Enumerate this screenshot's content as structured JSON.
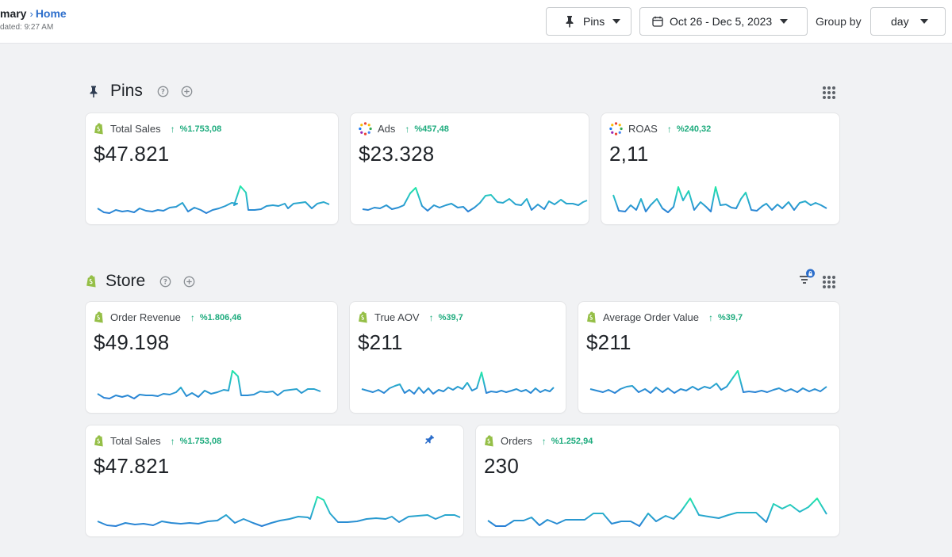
{
  "header": {
    "breadcrumb_parent": "mary",
    "breadcrumb_sep": "›",
    "breadcrumb_current": "Home",
    "updated": "dated: 9:27 AM",
    "pins_button": "Pins",
    "date_range": "Oct 26 - Dec 5, 2023",
    "group_by_label": "Group by",
    "group_by_value": "day"
  },
  "sections": {
    "pins": {
      "title": "Pins"
    },
    "store": {
      "title": "Store"
    }
  },
  "cards": {
    "pins_total_sales": {
      "label": "Total Sales",
      "delta": "%1.753,08",
      "value": "$47.821"
    },
    "pins_ads": {
      "label": "Ads",
      "delta": "%457,48",
      "value": "$23.328"
    },
    "pins_roas": {
      "label": "ROAS",
      "delta": "%240,32",
      "value": "2,11"
    },
    "store_order_revenue": {
      "label": "Order Revenue",
      "delta": "%1.806,46",
      "value": "$49.198"
    },
    "store_true_aov": {
      "label": "True AOV",
      "delta": "%39,7",
      "value": "$211"
    },
    "store_avg_order_value": {
      "label": "Average Order Value",
      "delta": "%39,7",
      "value": "$211"
    },
    "store_total_sales": {
      "label": "Total Sales",
      "delta": "%1.753,08",
      "value": "$47.821"
    },
    "store_orders": {
      "label": "Orders",
      "delta": "%1.252,94",
      "value": "230"
    }
  },
  "colors": {
    "accent": "#2c6ecb",
    "positive": "#1dab7d",
    "spark_low": "#2a7fd6",
    "spark_high": "#22e8a8"
  }
}
